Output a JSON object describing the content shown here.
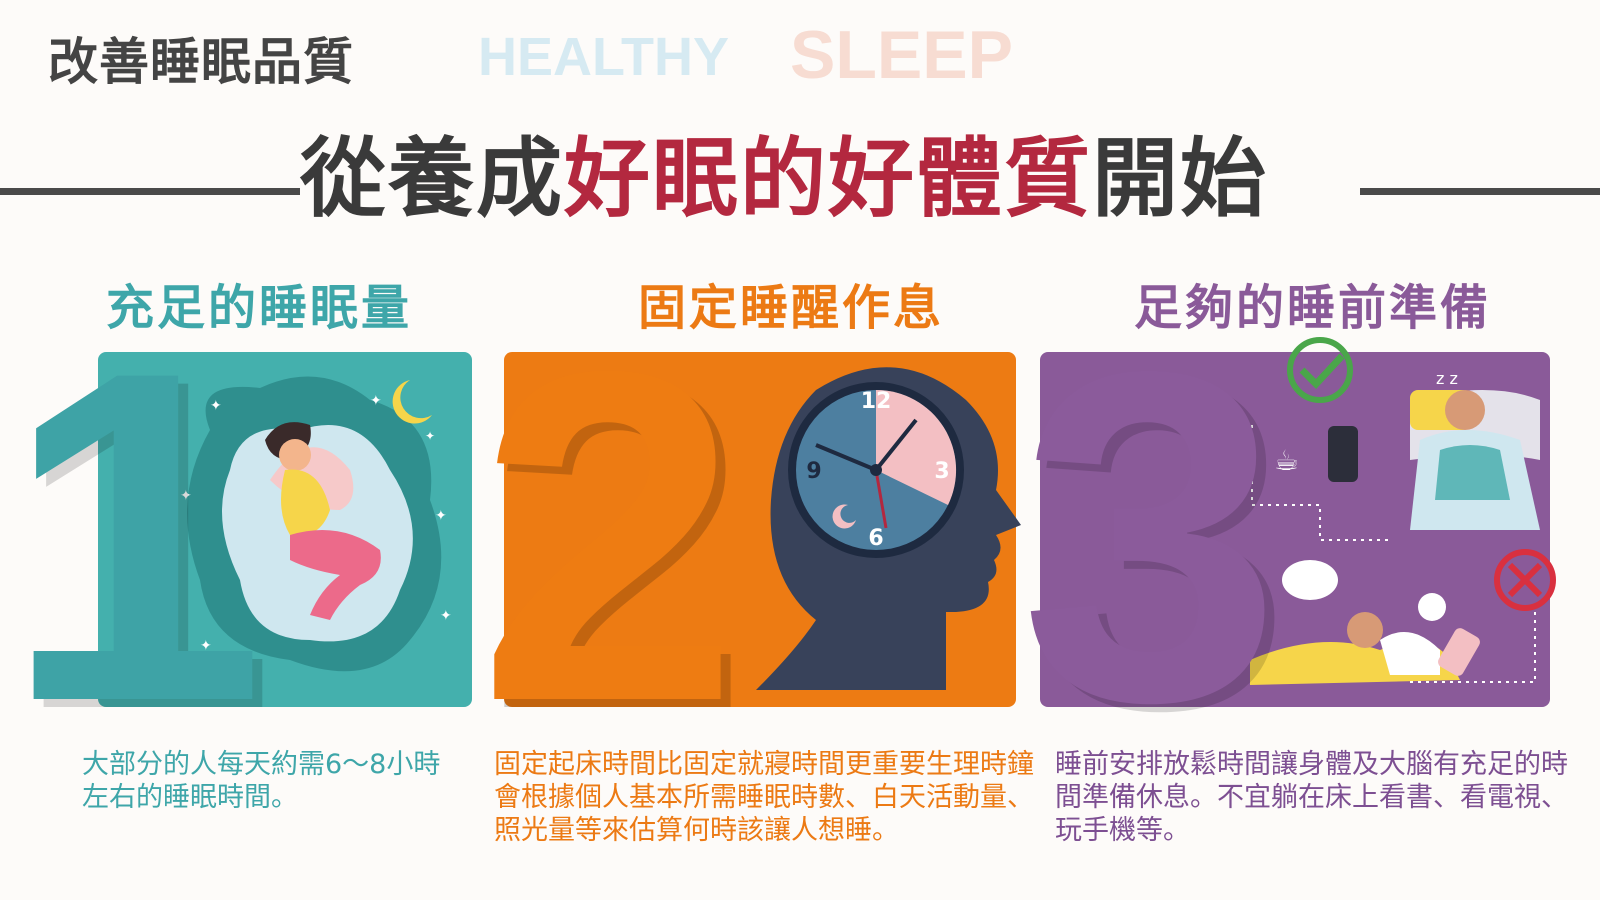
{
  "header": {
    "title_small": "改善睡眠品質",
    "en_healthy": "HEALTHY",
    "en_sleep": "SLEEP",
    "title_main_prefix": "從養成",
    "title_main_accent": "好眠的好體質",
    "title_main_suffix": "開始"
  },
  "sections": [
    {
      "number": "1",
      "title": "充足的睡眠量",
      "description": "大部分的人每天約需6～8小時左右的睡眠時間。",
      "color": "#3ea6a9"
    },
    {
      "number": "2",
      "title": "固定睡醒作息",
      "description": "固定起床時間比固定就寢時間更重要生理時鐘會根據個人基本所需睡眠時數、白天活動量、照光量等來估算何時該讓人想睡。",
      "color": "#ec7a14"
    },
    {
      "number": "3",
      "title": "足夠的睡前準備",
      "description": "睡前安排放鬆時間讓身體及大腦有充足的時間準備休息。不宜躺在床上看書、看電視、玩手機等。",
      "color": "#8a5a99"
    }
  ],
  "clock": {
    "n12": "12",
    "n3": "3",
    "n6": "6",
    "n9": "9"
  },
  "sleep_z": "z z",
  "colors": {
    "accent": "#b3283f",
    "dark": "#3a3a3a"
  }
}
